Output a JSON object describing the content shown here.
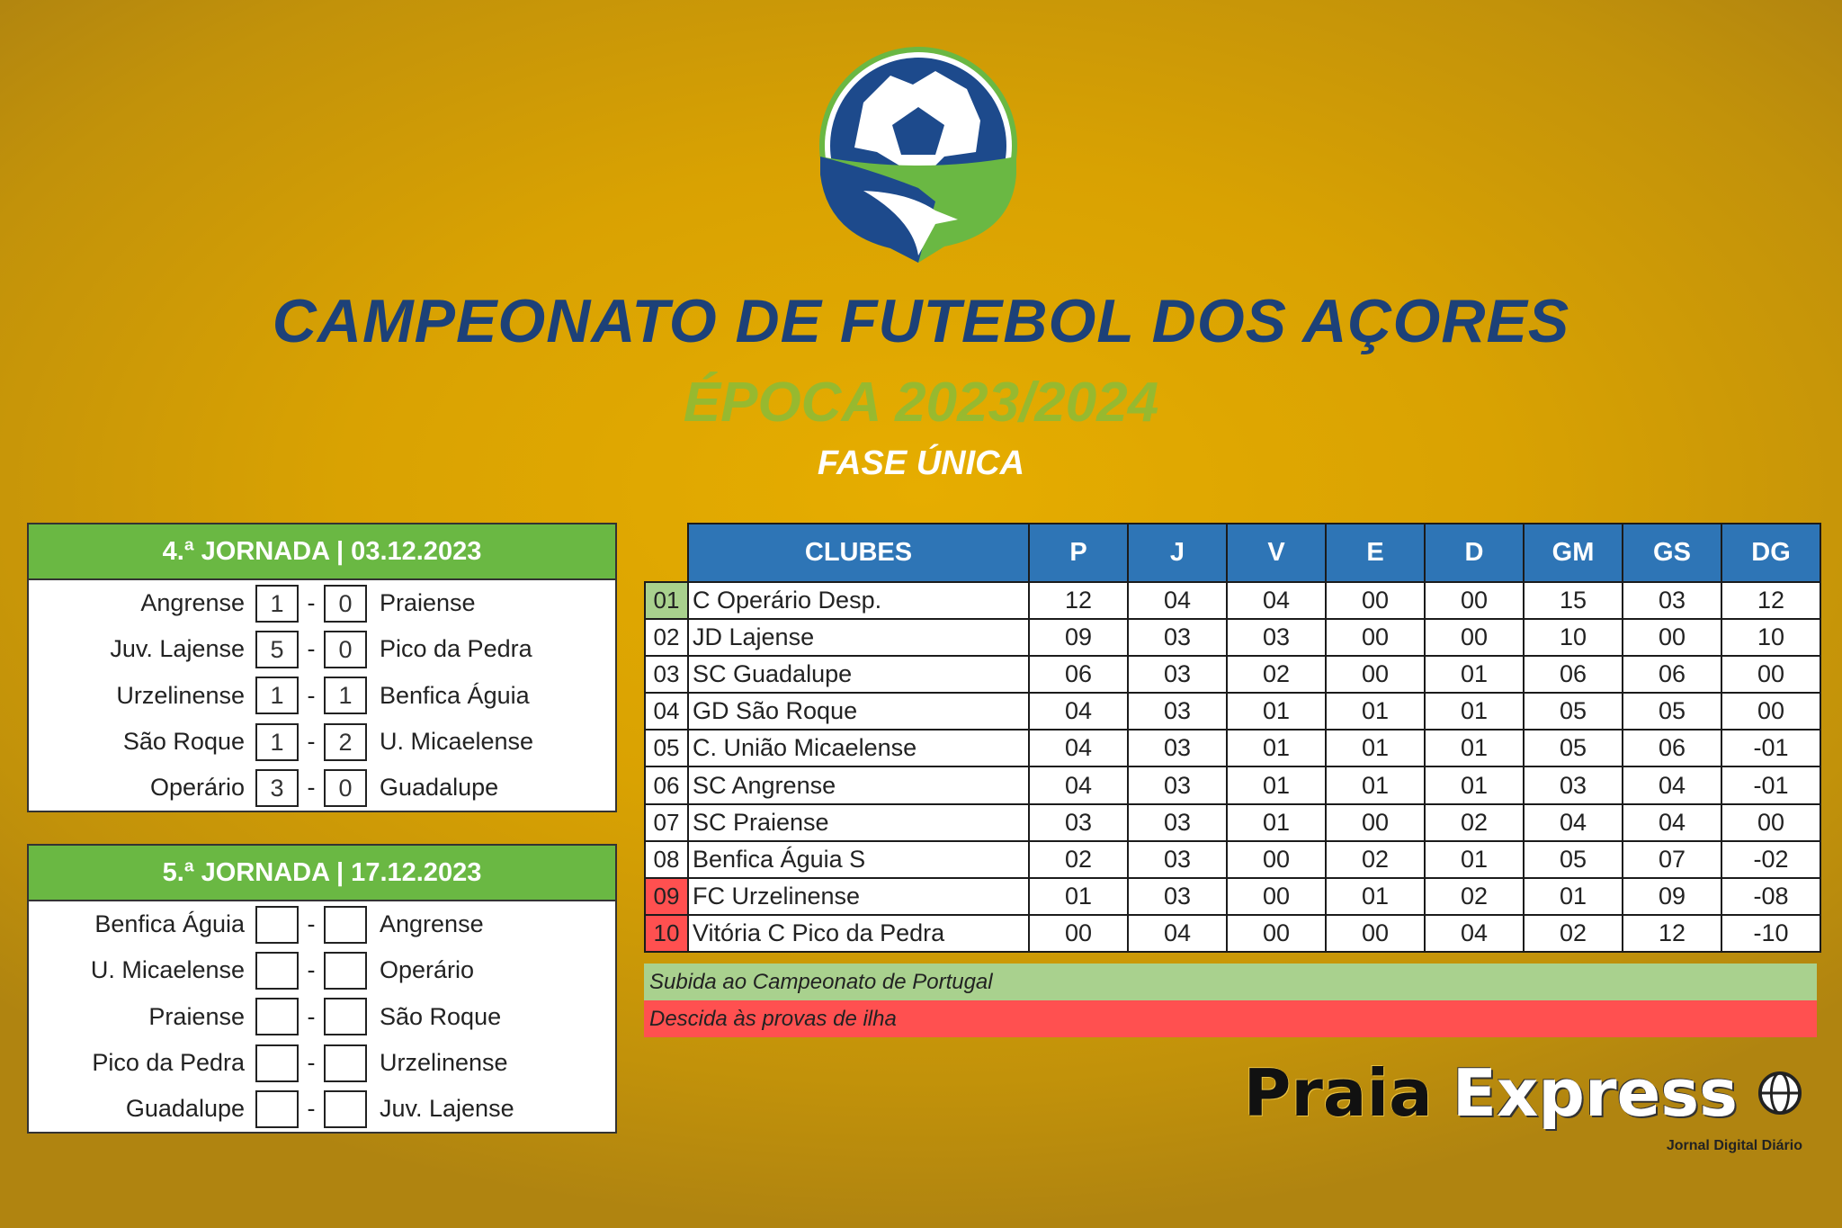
{
  "header": {
    "title": "CAMPEONATO  DE FUTEBOL DOS AÇORES",
    "season": "ÉPOCA 2023/2024",
    "phase": "FASE ÚNICA"
  },
  "colors": {
    "navy": "#1d4178",
    "green": "#6ab843",
    "table_header": "#2e75b6",
    "promotion": "#a9d18e",
    "relegation": "#ff5050",
    "background": "#d9a202"
  },
  "rounds": [
    {
      "title": "4.ª JORNADA | 03.12.2023",
      "matches": [
        {
          "home": "Angrense",
          "hs": "1",
          "as": "0",
          "away": "Praiense"
        },
        {
          "home": "Juv. Lajense",
          "hs": "5",
          "as": "0",
          "away": "Pico da Pedra"
        },
        {
          "home": "Urzelinense",
          "hs": "1",
          "as": "1",
          "away": "Benfica Águia"
        },
        {
          "home": "São Roque",
          "hs": "1",
          "as": "2",
          "away": "U. Micaelense"
        },
        {
          "home": "Operário",
          "hs": "3",
          "as": "0",
          "away": "Guadalupe"
        }
      ]
    },
    {
      "title": "5.ª JORNADA | 17.12.2023",
      "matches": [
        {
          "home": "Benfica Águia",
          "hs": "",
          "as": "",
          "away": "Angrense"
        },
        {
          "home": "U. Micaelense",
          "hs": "",
          "as": "",
          "away": "Operário"
        },
        {
          "home": "Praiense",
          "hs": "",
          "as": "",
          "away": "São Roque"
        },
        {
          "home": "Pico da Pedra",
          "hs": "",
          "as": "",
          "away": "Urzelinense"
        },
        {
          "home": "Guadalupe",
          "hs": "",
          "as": "",
          "away": "Juv. Lajense"
        }
      ]
    }
  ],
  "standings": {
    "columns": [
      "CLUBES",
      "P",
      "J",
      "V",
      "E",
      "D",
      "GM",
      "GS",
      "DG"
    ],
    "rows": [
      {
        "pos": "01",
        "zone": "promotion",
        "cells": [
          "C Operário Desp.",
          "12",
          "04",
          "04",
          "00",
          "00",
          "15",
          "03",
          "12"
        ]
      },
      {
        "pos": "02",
        "zone": "",
        "cells": [
          "JD Lajense",
          "09",
          "03",
          "03",
          "00",
          "00",
          "10",
          "00",
          "10"
        ]
      },
      {
        "pos": "03",
        "zone": "",
        "cells": [
          "SC Guadalupe",
          "06",
          "03",
          "02",
          "00",
          "01",
          "06",
          "06",
          "00"
        ]
      },
      {
        "pos": "04",
        "zone": "",
        "cells": [
          "GD São Roque",
          "04",
          "03",
          "01",
          "01",
          "01",
          "05",
          "05",
          "00"
        ]
      },
      {
        "pos": "05",
        "zone": "",
        "cells": [
          "C. União Micaelense",
          "04",
          "03",
          "01",
          "01",
          "01",
          "05",
          "06",
          "-01"
        ]
      },
      {
        "pos": "06",
        "zone": "",
        "cells": [
          "SC Angrense",
          "04",
          "03",
          "01",
          "01",
          "01",
          "03",
          "04",
          "-01"
        ]
      },
      {
        "pos": "07",
        "zone": "",
        "cells": [
          "SC Praiense",
          "03",
          "03",
          "01",
          "00",
          "02",
          "04",
          "04",
          "00"
        ]
      },
      {
        "pos": "08",
        "zone": "",
        "cells": [
          "Benfica Águia S",
          "02",
          "03",
          "00",
          "02",
          "01",
          "05",
          "07",
          "-02"
        ]
      },
      {
        "pos": "09",
        "zone": "relegation",
        "cells": [
          "FC Urzelinense",
          "01",
          "03",
          "00",
          "01",
          "02",
          "01",
          "09",
          "-08"
        ]
      },
      {
        "pos": "10",
        "zone": "relegation",
        "cells": [
          "Vitória C Pico da Pedra",
          "00",
          "04",
          "00",
          "00",
          "04",
          "02",
          "12",
          "-10"
        ]
      }
    ]
  },
  "legend": {
    "promotion": "Subida ao Campeonato de Portugal",
    "relegation": "Descida às provas de ilha"
  },
  "brand": {
    "name_part1": "Praia",
    "name_part2": "Express",
    "tagline": "Jornal Digital Diário"
  }
}
